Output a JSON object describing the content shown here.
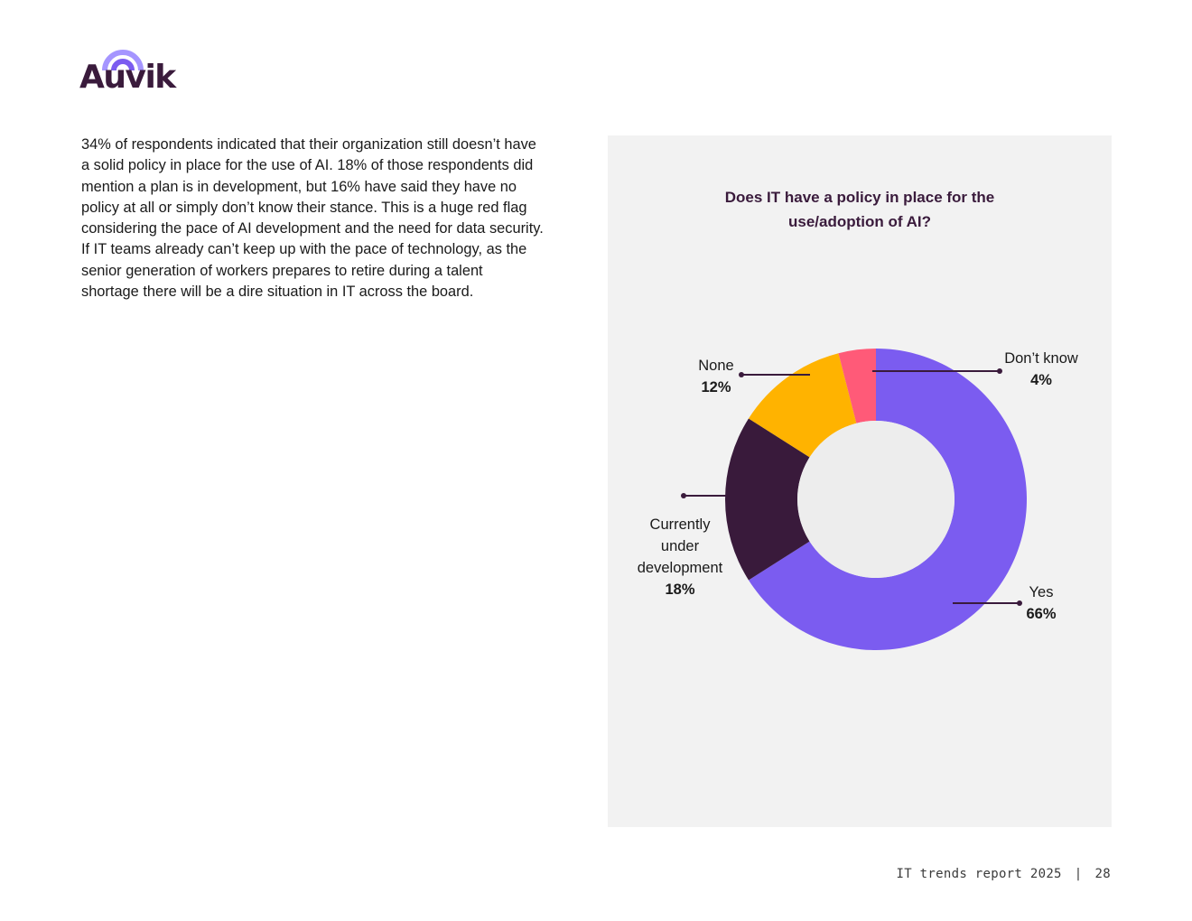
{
  "logo": {
    "text": "Auvik",
    "color": "#3a1b3c",
    "accent": "#8b7cf6"
  },
  "intro_text": "34% of respondents indicated that their organization still doesn’t have a solid policy in place for the use of AI. 18% of those respondents did mention a plan is in development, but 16% have said they have no policy at all or simply don’t know their stance. This is a huge red flag considering the pace of AI development and the need for data security. If IT teams already can’t keep up with the pace of technology, as the senior generation of workers prepares to retire during a talent shortage there will be a dire situation in IT across the board.",
  "chart_data": {
    "type": "pie",
    "donut": true,
    "title_line1": "Does IT have a policy in place for the",
    "title_line2": "use/adoption of AI?",
    "slices": [
      {
        "label": "Yes",
        "value": 66,
        "value_text": "66%",
        "color": "#7b5cf0"
      },
      {
        "label": "Currently under development",
        "label_lines": [
          "Currently",
          "under",
          "development"
        ],
        "value": 18,
        "value_text": "18%",
        "color": "#391a3b"
      },
      {
        "label": "None",
        "value": 12,
        "value_text": "12%",
        "color": "#ffb300"
      },
      {
        "label": "Don’t know",
        "value": 4,
        "value_text": "4%",
        "color": "#ff5a78"
      }
    ],
    "leader_color": "#3a1b3c"
  },
  "footer": {
    "report": "IT trends report 2025",
    "separator": "|",
    "page": "28"
  }
}
